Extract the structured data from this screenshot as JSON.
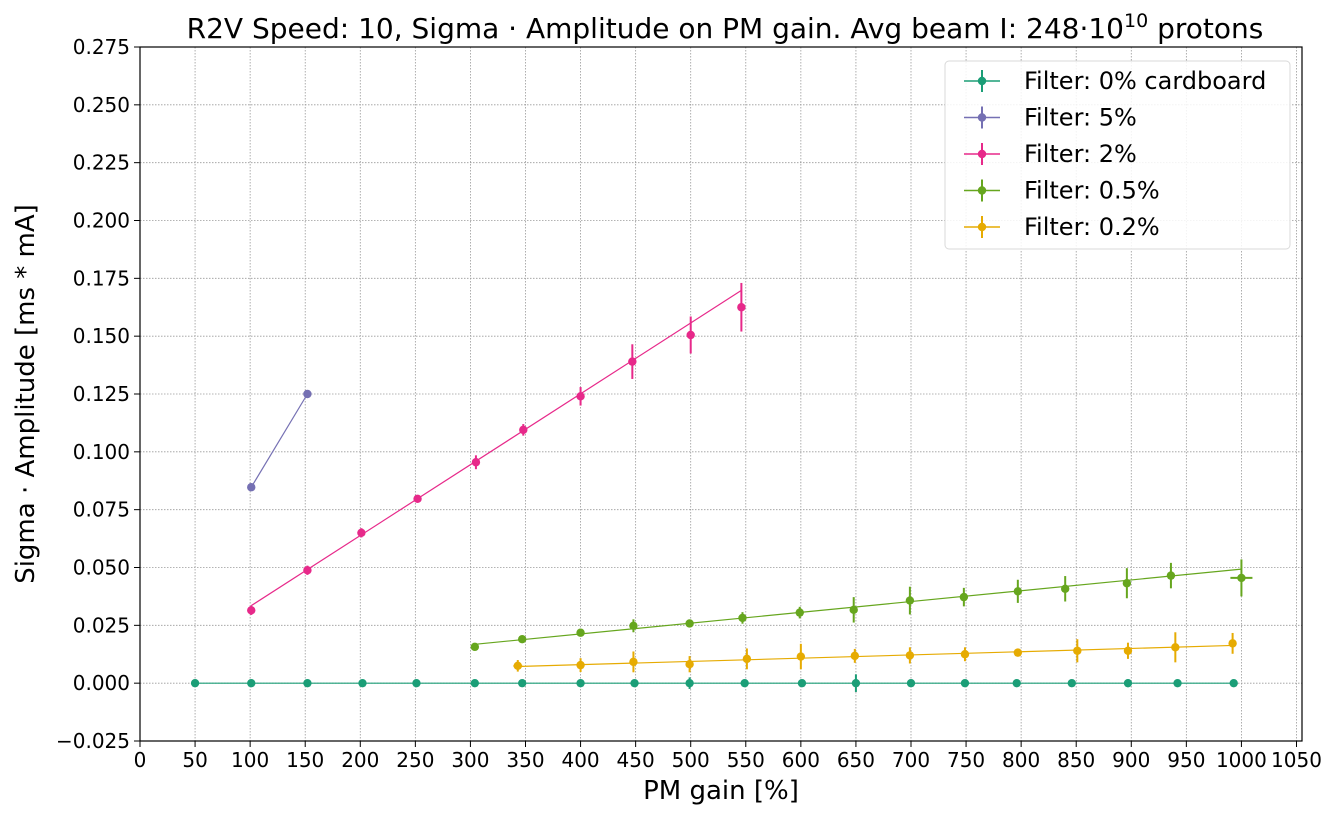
{
  "chart_data": {
    "type": "scatter",
    "title": "R2V Speed: 10, Sigma · Amplitude on PM gain. Avg beam I: 248·10",
    "title_superscript": "10",
    "title_suffix": " protons",
    "xlabel": "PM gain [%]",
    "ylabel": "Sigma · Amplitude [ms * mA]",
    "xlim": [
      0,
      1055
    ],
    "ylim": [
      -0.025,
      0.275
    ],
    "xticks": [
      0,
      50,
      100,
      150,
      200,
      250,
      300,
      350,
      400,
      450,
      500,
      550,
      600,
      650,
      700,
      750,
      800,
      850,
      900,
      950,
      1000,
      1050
    ],
    "yticks": [
      -0.025,
      0.0,
      0.025,
      0.05,
      0.075,
      0.1,
      0.125,
      0.15,
      0.175,
      0.2,
      0.225,
      0.25,
      0.275
    ],
    "ytick_labels": [
      "−0.025",
      "0.000",
      "0.025",
      "0.050",
      "0.075",
      "0.100",
      "0.125",
      "0.150",
      "0.175",
      "0.200",
      "0.225",
      "0.250",
      "0.275"
    ],
    "grid": true,
    "legend_position": "top-right",
    "series": [
      {
        "name": "Filter: 0% cardboard",
        "color": "#1b9e77",
        "points": [
          {
            "x": 50,
            "y": 0.0,
            "yerr": 0.0003
          },
          {
            "x": 101,
            "y": 0.0,
            "yerr": 0.0003
          },
          {
            "x": 152,
            "y": 0.0,
            "yerr": 0.0003
          },
          {
            "x": 202,
            "y": 0.0,
            "yerr": 0.0003
          },
          {
            "x": 251,
            "y": 0.0,
            "yerr": 0.0003
          },
          {
            "x": 304,
            "y": 0.0,
            "yerr": 0.0003
          },
          {
            "x": 347,
            "y": 0.0,
            "yerr": 0.0003
          },
          {
            "x": 400,
            "y": 0.0,
            "yerr": 0.0006
          },
          {
            "x": 449,
            "y": 0.0,
            "yerr": 0.0006
          },
          {
            "x": 499,
            "y": 0.0,
            "yerr": 0.0025
          },
          {
            "x": 549,
            "y": 0.0,
            "yerr": 0.0003
          },
          {
            "x": 601,
            "y": 0.0,
            "yerr": 0.0003
          },
          {
            "x": 650,
            "y": 0.0,
            "yerr": 0.0038
          },
          {
            "x": 700,
            "y": 0.0,
            "yerr": 0.0003
          },
          {
            "x": 749,
            "y": 0.0,
            "yerr": 0.0003
          },
          {
            "x": 796,
            "y": 0.0,
            "yerr": 0.0003
          },
          {
            "x": 846,
            "y": 0.0,
            "yerr": 0.0003
          },
          {
            "x": 897,
            "y": 0.0,
            "yerr": 0.0017
          },
          {
            "x": 942,
            "y": 0.0,
            "yerr": 0.0003
          },
          {
            "x": 993,
            "y": 0.0,
            "yerr": 0.0003
          }
        ],
        "fit": [
          [
            50,
            0.0
          ],
          [
            993,
            0.0
          ]
        ]
      },
      {
        "name": "Filter: 5%",
        "color": "#7570b3",
        "points": [
          {
            "x": 101,
            "y": 0.0847,
            "yerr": 0.0005
          },
          {
            "x": 152,
            "y": 0.125,
            "yerr": 0.0005
          }
        ],
        "fit": [
          [
            101,
            0.0847
          ],
          [
            152,
            0.125
          ]
        ]
      },
      {
        "name": "Filter: 2%",
        "color": "#e7298a",
        "points": [
          {
            "x": 101,
            "y": 0.0315,
            "yerr": 0.002
          },
          {
            "x": 152,
            "y": 0.0488,
            "yerr": 0.002
          },
          {
            "x": 201,
            "y": 0.065,
            "yerr": 0.002
          },
          {
            "x": 252,
            "y": 0.0797,
            "yerr": 0.001
          },
          {
            "x": 305,
            "y": 0.0955,
            "yerr": 0.003
          },
          {
            "x": 348,
            "y": 0.1095,
            "yerr": 0.0025
          },
          {
            "x": 400,
            "y": 0.124,
            "yerr": 0.004
          },
          {
            "x": 447,
            "y": 0.139,
            "yerr": 0.0075
          },
          {
            "x": 500,
            "y": 0.1505,
            "yerr": 0.008
          },
          {
            "x": 546,
            "y": 0.1625,
            "yerr": 0.0105
          }
        ],
        "fit": [
          [
            101,
            0.0335
          ],
          [
            546,
            0.1698
          ]
        ]
      },
      {
        "name": "Filter: 0.5%",
        "color": "#66a61e",
        "points": [
          {
            "x": 304,
            "y": 0.0157,
            "yerr": 0.0005
          },
          {
            "x": 347,
            "y": 0.019,
            "yerr": 0.0015
          },
          {
            "x": 400,
            "y": 0.0218,
            "yerr": 0.0015
          },
          {
            "x": 448,
            "y": 0.0248,
            "yerr": 0.0028
          },
          {
            "x": 499,
            "y": 0.0258,
            "yerr": 0.0015
          },
          {
            "x": 547,
            "y": 0.0282,
            "yerr": 0.0025
          },
          {
            "x": 599,
            "y": 0.0305,
            "yerr": 0.0025
          },
          {
            "x": 648,
            "y": 0.0317,
            "yerr": 0.0055
          },
          {
            "x": 699,
            "y": 0.0357,
            "yerr": 0.006
          },
          {
            "x": 748,
            "y": 0.0372,
            "yerr": 0.004
          },
          {
            "x": 797,
            "y": 0.0397,
            "yerr": 0.005
          },
          {
            "x": 840,
            "y": 0.0408,
            "yerr": 0.0055
          },
          {
            "x": 896,
            "y": 0.0432,
            "yerr": 0.0065
          },
          {
            "x": 936,
            "y": 0.0465,
            "yerr": 0.0055
          },
          {
            "x": 1000,
            "y": 0.0455,
            "yerr": 0.008,
            "xerr": 10
          }
        ],
        "fit": [
          [
            304,
            0.0168
          ],
          [
            1000,
            0.0493
          ]
        ]
      },
      {
        "name": "Filter: 0.2%",
        "color": "#e6ab02",
        "points": [
          {
            "x": 343,
            "y": 0.0075,
            "yerr": 0.0025,
            "xerr": 4
          },
          {
            "x": 400,
            "y": 0.0078,
            "yerr": 0.003
          },
          {
            "x": 448,
            "y": 0.0092,
            "yerr": 0.0045
          },
          {
            "x": 499,
            "y": 0.0082,
            "yerr": 0.0035
          },
          {
            "x": 551,
            "y": 0.0105,
            "yerr": 0.0045
          },
          {
            "x": 600,
            "y": 0.0115,
            "yerr": 0.0055
          },
          {
            "x": 649,
            "y": 0.0118,
            "yerr": 0.003
          },
          {
            "x": 699,
            "y": 0.012,
            "yerr": 0.0035
          },
          {
            "x": 749,
            "y": 0.0125,
            "yerr": 0.003
          },
          {
            "x": 797,
            "y": 0.0132,
            "yerr": 0.0015
          },
          {
            "x": 851,
            "y": 0.014,
            "yerr": 0.005
          },
          {
            "x": 897,
            "y": 0.014,
            "yerr": 0.0035
          },
          {
            "x": 940,
            "y": 0.0155,
            "yerr": 0.0065
          },
          {
            "x": 992,
            "y": 0.0172,
            "yerr": 0.0045
          }
        ],
        "fit": [
          [
            343,
            0.0072
          ],
          [
            992,
            0.0163
          ]
        ]
      }
    ]
  }
}
